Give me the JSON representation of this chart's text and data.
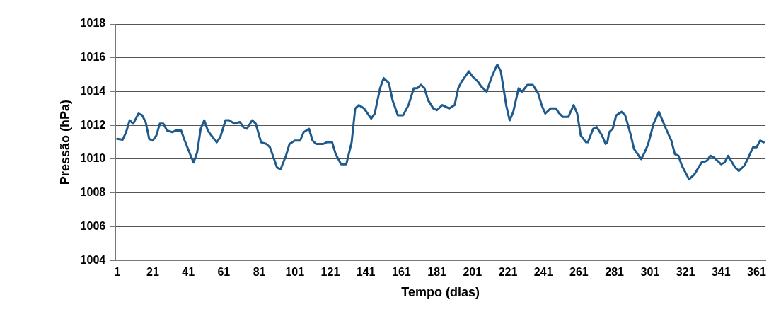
{
  "chart_data": {
    "type": "line",
    "xlabel": "Tempo (dias)",
    "ylabel": "Pressão (hPa)",
    "xlim": [
      0,
      366
    ],
    "xticks": [
      1,
      21,
      41,
      61,
      81,
      101,
      121,
      141,
      161,
      181,
      201,
      221,
      241,
      261,
      281,
      301,
      321,
      341,
      361
    ],
    "ylim": [
      1004,
      1018
    ],
    "yticks": [
      1004,
      1006,
      1008,
      1010,
      1012,
      1014,
      1016,
      1018
    ],
    "grid": "y",
    "legend": false,
    "marker": "none",
    "line_style": "solid",
    "series": [
      {
        "color": "#1f5a8c",
        "x": [
          1,
          4,
          6,
          8,
          10,
          13,
          15,
          17,
          19,
          21,
          23,
          25,
          27,
          29,
          32,
          34,
          37,
          39,
          42,
          44,
          46,
          48,
          50,
          52,
          54,
          57,
          59,
          62,
          64,
          67,
          70,
          72,
          74,
          77,
          79,
          82,
          85,
          87,
          91,
          93,
          96,
          98,
          101,
          104,
          106,
          109,
          111,
          113,
          117,
          119,
          122,
          124,
          127,
          130,
          133,
          135,
          137,
          140,
          144,
          146,
          149,
          151,
          154,
          156,
          159,
          162,
          165,
          168,
          170,
          172,
          174,
          176,
          179,
          181,
          184,
          188,
          191,
          193,
          195,
          199,
          201,
          204,
          206,
          209,
          212,
          215,
          217,
          220,
          222,
          224,
          227,
          229,
          232,
          235,
          238,
          240,
          242,
          245,
          248,
          250,
          252,
          255,
          258,
          260,
          262,
          265,
          266,
          269,
          271,
          274,
          276,
          277,
          278,
          280,
          282,
          285,
          287,
          290,
          292,
          296,
          298,
          300,
          303,
          306,
          308,
          310,
          313,
          315,
          317,
          319,
          323,
          326,
          330,
          333,
          335,
          337,
          341,
          343,
          345,
          349,
          351,
          354,
          356,
          359,
          361,
          363,
          365
        ],
        "values": [
          1011.2,
          1011.15,
          1011.6,
          1012.3,
          1012.1,
          1012.7,
          1012.6,
          1012.2,
          1011.2,
          1011.1,
          1011.4,
          1012.1,
          1012.1,
          1011.7,
          1011.6,
          1011.7,
          1011.7,
          1011.1,
          1010.3,
          1009.8,
          1010.4,
          1011.8,
          1012.3,
          1011.7,
          1011.4,
          1011.0,
          1011.3,
          1012.3,
          1012.3,
          1012.1,
          1012.2,
          1011.9,
          1011.8,
          1012.3,
          1012.1,
          1011.0,
          1010.9,
          1010.7,
          1009.5,
          1009.4,
          1010.2,
          1010.9,
          1011.1,
          1011.1,
          1011.6,
          1011.8,
          1011.1,
          1010.9,
          1010.9,
          1011.0,
          1011.0,
          1010.3,
          1009.7,
          1009.7,
          1011.0,
          1013.0,
          1013.2,
          1013.0,
          1012.4,
          1012.7,
          1014.2,
          1014.8,
          1014.5,
          1013.5,
          1012.6,
          1012.6,
          1013.2,
          1014.2,
          1014.2,
          1014.4,
          1014.2,
          1013.5,
          1013.0,
          1012.9,
          1013.2,
          1013.0,
          1013.2,
          1014.2,
          1014.6,
          1015.2,
          1014.9,
          1014.6,
          1014.3,
          1014.0,
          1014.9,
          1015.6,
          1015.2,
          1013.2,
          1012.3,
          1012.8,
          1014.2,
          1014.0,
          1014.4,
          1014.4,
          1013.9,
          1013.2,
          1012.7,
          1013.0,
          1013.0,
          1012.7,
          1012.5,
          1012.5,
          1013.2,
          1012.7,
          1011.4,
          1011.0,
          1011.0,
          1011.8,
          1011.9,
          1011.4,
          1010.9,
          1011.0,
          1011.6,
          1011.8,
          1012.6,
          1012.8,
          1012.6,
          1011.5,
          1010.6,
          1010.0,
          1010.4,
          1010.9,
          1012.1,
          1012.8,
          1012.3,
          1011.8,
          1011.1,
          1010.3,
          1010.2,
          1009.6,
          1008.8,
          1009.1,
          1009.8,
          1009.9,
          1010.2,
          1010.1,
          1009.7,
          1009.8,
          1010.2,
          1009.5,
          1009.3,
          1009.6,
          1010.0,
          1010.7,
          1010.7,
          1011.1,
          1011.0
        ]
      }
    ]
  }
}
